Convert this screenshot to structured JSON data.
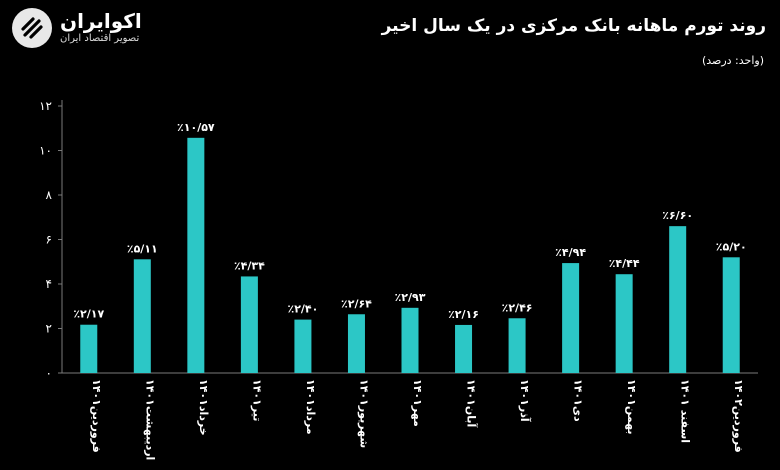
{
  "brand": {
    "name": "اکوایران",
    "tagline": "تصویر اقتصاد ایران",
    "logo_icon": "ecoiran-logo-icon"
  },
  "colors": {
    "background": "#000000",
    "bar": "#2cc7c6",
    "text": "#ffffff",
    "axis": "#7a7a7a"
  },
  "chart_data": {
    "type": "bar",
    "title": "روند تورم ماهانه بانک مرکزی در یک سال اخیر",
    "unit_note": "(واحد: درصد)",
    "xlabel": "",
    "ylabel": "",
    "ylim": [
      0,
      12
    ],
    "yticks": [
      "۰",
      "۲",
      "۴",
      "۶",
      "۸",
      "۱۰",
      "۱۲"
    ],
    "grid": false,
    "legend": "none",
    "categories": [
      "فروردین۱۴۰۱",
      "اردیبهشت۱۴۰۱",
      "خرداد۱۴۰۱",
      "تیر۱۴۰۱",
      "مرداد۱۴۰۱",
      "شهریور۱۴۰۱",
      "مهر۱۴۰۱",
      "آبان۱۴۰۱",
      "آذر۱۴۰۱",
      "دی۱۴۰۱",
      "بهمن۱۴۰۱",
      "اسفند ۱۴۰۱",
      "فروردین۱۴۰۲"
    ],
    "values": [
      2.17,
      5.11,
      10.57,
      4.34,
      2.4,
      2.64,
      2.93,
      2.16,
      2.46,
      4.94,
      4.44,
      6.6,
      5.2
    ],
    "data_labels": [
      "٪۲/۱۷",
      "٪۵/۱۱",
      "٪۱۰/۵۷",
      "٪۴/۳۴",
      "٪۲/۴۰",
      "٪۲/۶۴",
      "٪۲/۹۳",
      "٪۲/۱۶",
      "٪۲/۴۶",
      "٪۴/۹۴",
      "٪۴/۴۴",
      "٪۶/۶۰",
      "٪۵/۲۰"
    ]
  }
}
